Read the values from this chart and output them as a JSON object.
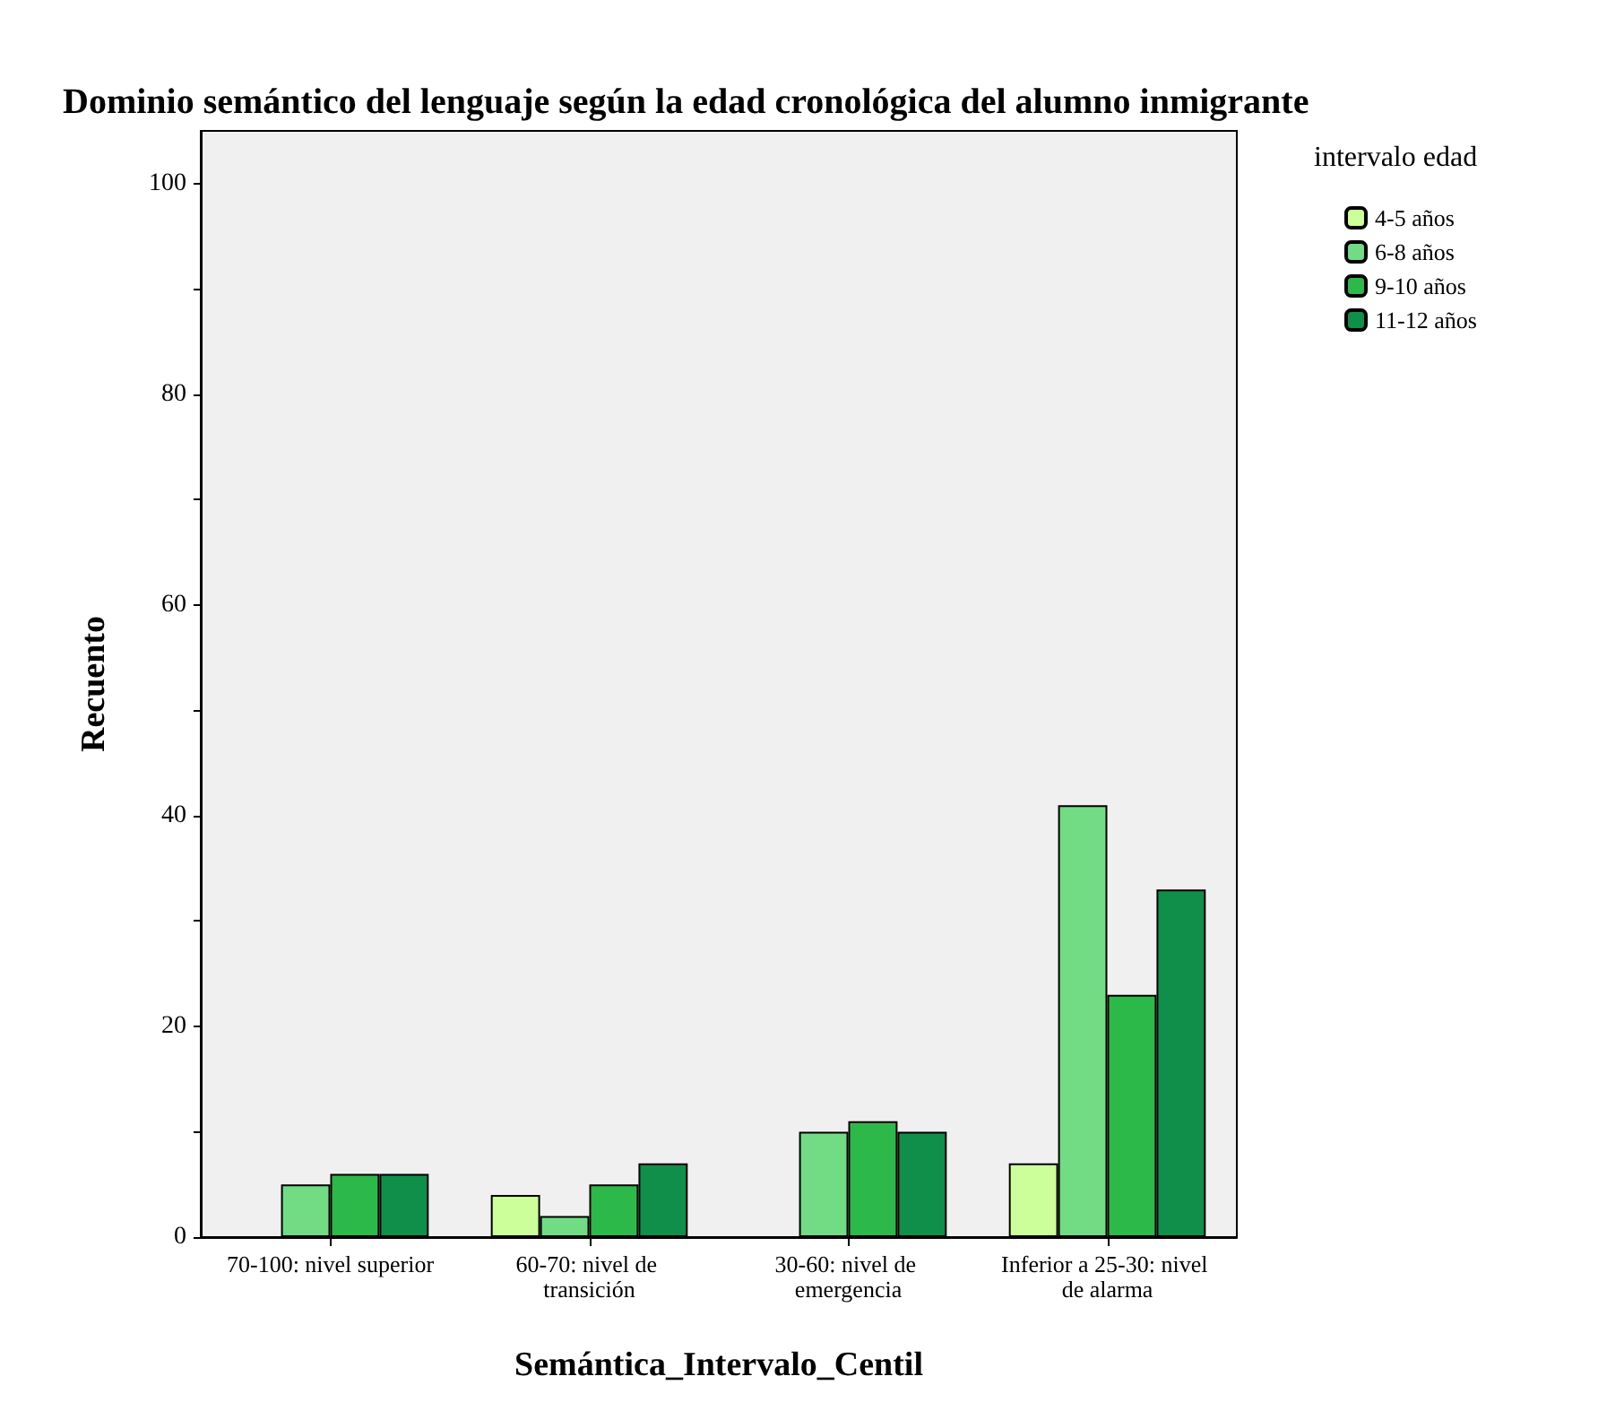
{
  "chart_data": {
    "type": "bar",
    "title": "Dominio semántico del lenguaje según la edad cronológica del alumno inmigrante",
    "xlabel": "Semántica_Intervalo_Centil",
    "ylabel": "Recuento",
    "legend_title": "intervalo edad",
    "categories": [
      "70-100: nivel superior",
      "60-70: nivel de transición",
      "30-60: nivel de emergencia",
      "Inferior a 25-30: nivel de alarma"
    ],
    "series": [
      {
        "name": "4-5 años",
        "color": "#ccff99",
        "values": [
          null,
          4,
          null,
          7
        ]
      },
      {
        "name": "6-8 años",
        "color": "#71dc84",
        "values": [
          5,
          2,
          10,
          41
        ]
      },
      {
        "name": "9-10 años",
        "color": "#2db84a",
        "values": [
          6,
          5,
          11,
          23
        ]
      },
      {
        "name": "11-12 años",
        "color": "#0f8f4a",
        "values": [
          6,
          7,
          10,
          33
        ]
      }
    ],
    "ylim": [
      0,
      105
    ],
    "yticks": [
      0,
      {
        "value": 10,
        "label": null
      },
      20,
      {
        "value": 30,
        "label": null
      },
      40,
      {
        "value": 50,
        "label": null
      },
      60,
      {
        "value": 70,
        "label": null
      },
      80,
      {
        "value": 90,
        "label": null
      },
      100
    ],
    "grid": false,
    "legend": "top right"
  }
}
